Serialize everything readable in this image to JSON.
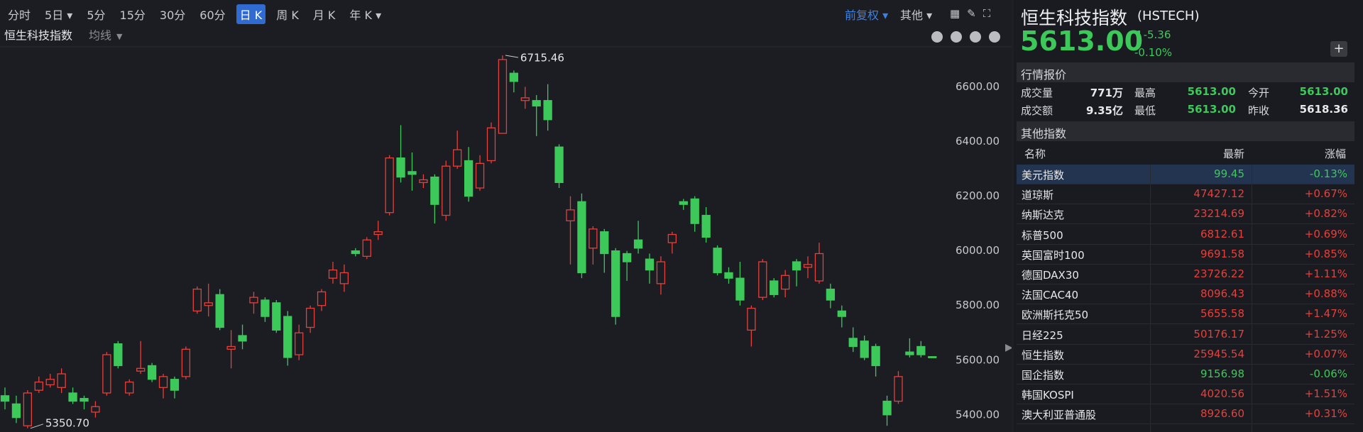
{
  "toolbar": {
    "periods": [
      "分时",
      "5日",
      "5分",
      "15分",
      "30分",
      "60分",
      "日 K",
      "周 K",
      "月 K",
      "年 K"
    ],
    "active": 6,
    "dropdowns": [
      1,
      9
    ],
    "adjust": "前复权",
    "other": "其他"
  },
  "chart_header": {
    "name": "恒生科技指数",
    "ma": "均线"
  },
  "chart": {
    "type": "candlestick",
    "ylim": [
      5345,
      6744
    ],
    "yticks": [
      {
        "value": 5400,
        "label": "5400.00"
      },
      {
        "value": 5600,
        "label": "5600.00"
      },
      {
        "value": 5800,
        "label": "5800.00"
      },
      {
        "value": 6000,
        "label": "6000.00"
      },
      {
        "value": 6200,
        "label": "6200.00"
      },
      {
        "value": 6400,
        "label": "6400.00"
      },
      {
        "value": 6600,
        "label": "6600.00"
      }
    ],
    "open": [
      5470,
      5440,
      5360,
      5490,
      5510,
      5500,
      5480,
      5460,
      5410,
      5480,
      5660,
      5480,
      5560,
      5580,
      5500,
      5530,
      5540,
      5780,
      5800,
      5840,
      5640,
      5690,
      5810,
      5820,
      5810,
      5760,
      5620,
      5720,
      5800,
      5900,
      5880,
      6000,
      5980,
      6060,
      6140,
      6340,
      6290,
      6250,
      6270,
      6130,
      6310,
      6330,
      6230,
      6330,
      6430,
      6650,
      6550,
      6550,
      6550,
      6380,
      6110,
      6180,
      6010,
      6070,
      6000,
      5990,
      6040,
      5970,
      5880,
      6030,
      6180,
      6190,
      6130,
      6010,
      5920,
      5900,
      5710,
      5830,
      5890,
      5860,
      5960,
      5940,
      5890,
      5860,
      5780,
      5680,
      5670,
      5650,
      5450,
      5450,
      5630,
      5650,
      5613
    ],
    "high": [
      5500,
      5470,
      5490,
      5540,
      5550,
      5570,
      5500,
      5470,
      5450,
      5630,
      5670,
      5530,
      5670,
      5590,
      5550,
      5540,
      5650,
      5870,
      5880,
      5860,
      5710,
      5730,
      5850,
      5830,
      5820,
      5780,
      5730,
      5800,
      5860,
      5960,
      5950,
      6010,
      6050,
      6110,
      6350,
      6460,
      6360,
      6280,
      6280,
      6330,
      6440,
      6380,
      6350,
      6470,
      6715.46,
      6660,
      6600,
      6570,
      6610,
      6390,
      6200,
      6210,
      6090,
      6080,
      6010,
      6000,
      6110,
      5990,
      5980,
      6070,
      6190,
      6200,
      6160,
      6020,
      5940,
      5960,
      5800,
      5970,
      5900,
      5930,
      5970,
      5980,
      6030,
      5880,
      5800,
      5720,
      5690,
      5660,
      5470,
      5560,
      5680,
      5670,
      5613
    ],
    "low": [
      5420,
      5370,
      5350.7,
      5480,
      5500,
      5480,
      5440,
      5420,
      5390,
      5470,
      5570,
      5470,
      5550,
      5520,
      5460,
      5460,
      5530,
      5770,
      5760,
      5710,
      5570,
      5640,
      5770,
      5740,
      5700,
      5580,
      5600,
      5700,
      5780,
      5880,
      5850,
      5980,
      5970,
      6040,
      6130,
      6250,
      6220,
      6230,
      6100,
      6110,
      6300,
      6180,
      6220,
      6320,
      6430,
      6580,
      6520,
      6420,
      6440,
      6230,
      5950,
      5900,
      5950,
      5920,
      5730,
      5890,
      5990,
      5880,
      5840,
      5990,
      6150,
      6070,
      6030,
      5910,
      5880,
      5800,
      5650,
      5820,
      5830,
      5830,
      5870,
      5900,
      5880,
      5790,
      5720,
      5630,
      5600,
      5540,
      5360,
      5440,
      5610,
      5610,
      5613
    ],
    "close": [
      5450,
      5390,
      5480,
      5520,
      5530,
      5550,
      5450,
      5450,
      5430,
      5620,
      5580,
      5520,
      5570,
      5530,
      5540,
      5490,
      5640,
      5860,
      5810,
      5720,
      5650,
      5670,
      5830,
      5760,
      5710,
      5610,
      5700,
      5790,
      5850,
      5930,
      5920,
      5990,
      6040,
      6070,
      6340,
      6270,
      6280,
      6260,
      6170,
      6310,
      6370,
      6200,
      6320,
      6450,
      6700,
      6620,
      6560,
      6530,
      6480,
      6250,
      6150,
      5920,
      6080,
      5990,
      5760,
      5960,
      6010,
      5930,
      5960,
      6060,
      6170,
      6100,
      6050,
      5920,
      5900,
      5820,
      5790,
      5960,
      5840,
      5910,
      5930,
      5950,
      5990,
      5820,
      5760,
      5650,
      5610,
      5580,
      5400,
      5540,
      5620,
      5620,
      5613
    ],
    "high_label": "6715.46",
    "low_label": "5350.70",
    "up_color": "#e5403b",
    "down_color": "#3dc95a"
  },
  "quote": {
    "name": "恒生科技指数",
    "code": "(HSTECH)",
    "price": "5613.00",
    "change": "-5.36",
    "change_pct": "-0.10%"
  },
  "market": {
    "title": "行情报价",
    "rows": [
      [
        [
          "成交量",
          "771万"
        ],
        [
          "最高",
          "5613.00"
        ],
        [
          "今开",
          "5613.00"
        ]
      ],
      [
        [
          "成交额",
          "9.35亿"
        ],
        [
          "最低",
          "5613.00"
        ],
        [
          "昨收",
          "5618.36"
        ]
      ]
    ]
  },
  "indices": {
    "title": "其他指数",
    "columns": [
      "名称",
      "最新",
      "涨幅"
    ],
    "selected": 0,
    "rows": [
      [
        "美元指数",
        "99.45",
        "-0.13%"
      ],
      [
        "道琼斯",
        "47427.12",
        "+0.67%"
      ],
      [
        "纳斯达克",
        "23214.69",
        "+0.82%"
      ],
      [
        "标普500",
        "6812.61",
        "+0.69%"
      ],
      [
        "英国富时100",
        "9691.58",
        "+0.85%"
      ],
      [
        "德国DAX30",
        "23726.22",
        "+1.11%"
      ],
      [
        "法国CAC40",
        "8096.43",
        "+0.88%"
      ],
      [
        "欧洲斯托克50",
        "5655.58",
        "+1.47%"
      ],
      [
        "日经225",
        "50176.17",
        "+1.25%"
      ],
      [
        "恒生指数",
        "25945.54",
        "+0.07%"
      ],
      [
        "国企指数",
        "9156.98",
        "-0.06%"
      ],
      [
        "韩国KOSPI",
        "4020.56",
        "+1.51%"
      ],
      [
        "澳大利亚普通股",
        "8926.60",
        "+0.31%"
      ]
    ]
  }
}
